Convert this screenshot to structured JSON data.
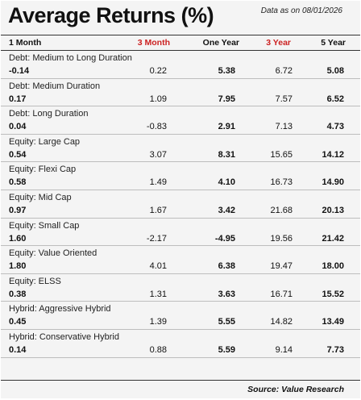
{
  "title": "Average Returns (%)",
  "as_of": "Data as on 08/01/2026",
  "headers": [
    "1 Month",
    "3 Month",
    "One Year",
    "3 Year",
    "5 Year"
  ],
  "rows": [
    {
      "category": "Debt: Medium to Long Duration",
      "values": [
        "-0.14",
        "0.22",
        "5.38",
        "6.72",
        "5.08"
      ]
    },
    {
      "category": "Debt: Medium Duration",
      "values": [
        "0.17",
        "1.09",
        "7.95",
        "7.57",
        "6.52"
      ]
    },
    {
      "category": "Debt: Long Duration",
      "values": [
        "0.04",
        "-0.83",
        "2.91",
        "7.13",
        "4.73"
      ]
    },
    {
      "category": "Equity: Large Cap",
      "values": [
        "0.54",
        "3.07",
        "8.31",
        "15.65",
        "14.12"
      ]
    },
    {
      "category": "Equity: Flexi Cap",
      "values": [
        "0.58",
        "1.49",
        "4.10",
        "16.73",
        "14.90"
      ]
    },
    {
      "category": "Equity: Mid Cap",
      "values": [
        "0.97",
        "1.67",
        "3.42",
        "21.68",
        "20.13"
      ]
    },
    {
      "category": "Equity: Small Cap",
      "values": [
        "1.60",
        "-2.17",
        "-4.95",
        "19.56",
        "21.42"
      ]
    },
    {
      "category": "Equity: Value Oriented",
      "values": [
        "1.80",
        "4.01",
        "6.38",
        "19.47",
        "18.00"
      ]
    },
    {
      "category": "Equity: ELSS",
      "values": [
        "0.38",
        "1.31",
        "3.63",
        "16.71",
        "15.52"
      ]
    },
    {
      "category": "Hybrid: Aggressive Hybrid",
      "values": [
        "0.45",
        "1.39",
        "5.55",
        "14.82",
        "13.49"
      ]
    },
    {
      "category": "Hybrid: Conservative Hybrid",
      "values": [
        "0.14",
        "0.88",
        "5.59",
        "9.14",
        "7.73"
      ]
    }
  ],
  "source": "Source: Value Research",
  "colors": {
    "accent_red": "#cc2222",
    "background": "#f4f4f4"
  }
}
